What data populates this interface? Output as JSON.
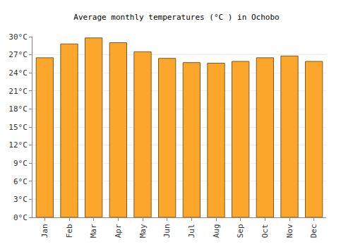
{
  "chart_data": {
    "type": "bar",
    "title": "Average monthly temperatures (°C ) in Ochobo",
    "categories": [
      "Jan",
      "Feb",
      "Mar",
      "Apr",
      "May",
      "Jun",
      "Jul",
      "Aug",
      "Sep",
      "Oct",
      "Nov",
      "Dec"
    ],
    "values": [
      26.5,
      28.8,
      29.8,
      29.0,
      27.5,
      26.4,
      25.7,
      25.6,
      25.9,
      26.5,
      26.8,
      25.9
    ],
    "color": "#fca72c",
    "ylim": [
      0,
      30
    ],
    "yticks": [
      {
        "value": 0,
        "label": "0°C"
      },
      {
        "value": 3,
        "label": "3°C"
      },
      {
        "value": 6,
        "label": "6°C"
      },
      {
        "value": 9,
        "label": "9°C"
      },
      {
        "value": 12,
        "label": "12°C"
      },
      {
        "value": 15,
        "label": "15°C"
      },
      {
        "value": 18,
        "label": "18°C"
      },
      {
        "value": 21,
        "label": "21°C"
      },
      {
        "value": 24,
        "label": "24°C"
      },
      {
        "value": 27,
        "label": "27°C"
      },
      {
        "value": 30,
        "label": "30°C"
      }
    ],
    "grid": true
  }
}
